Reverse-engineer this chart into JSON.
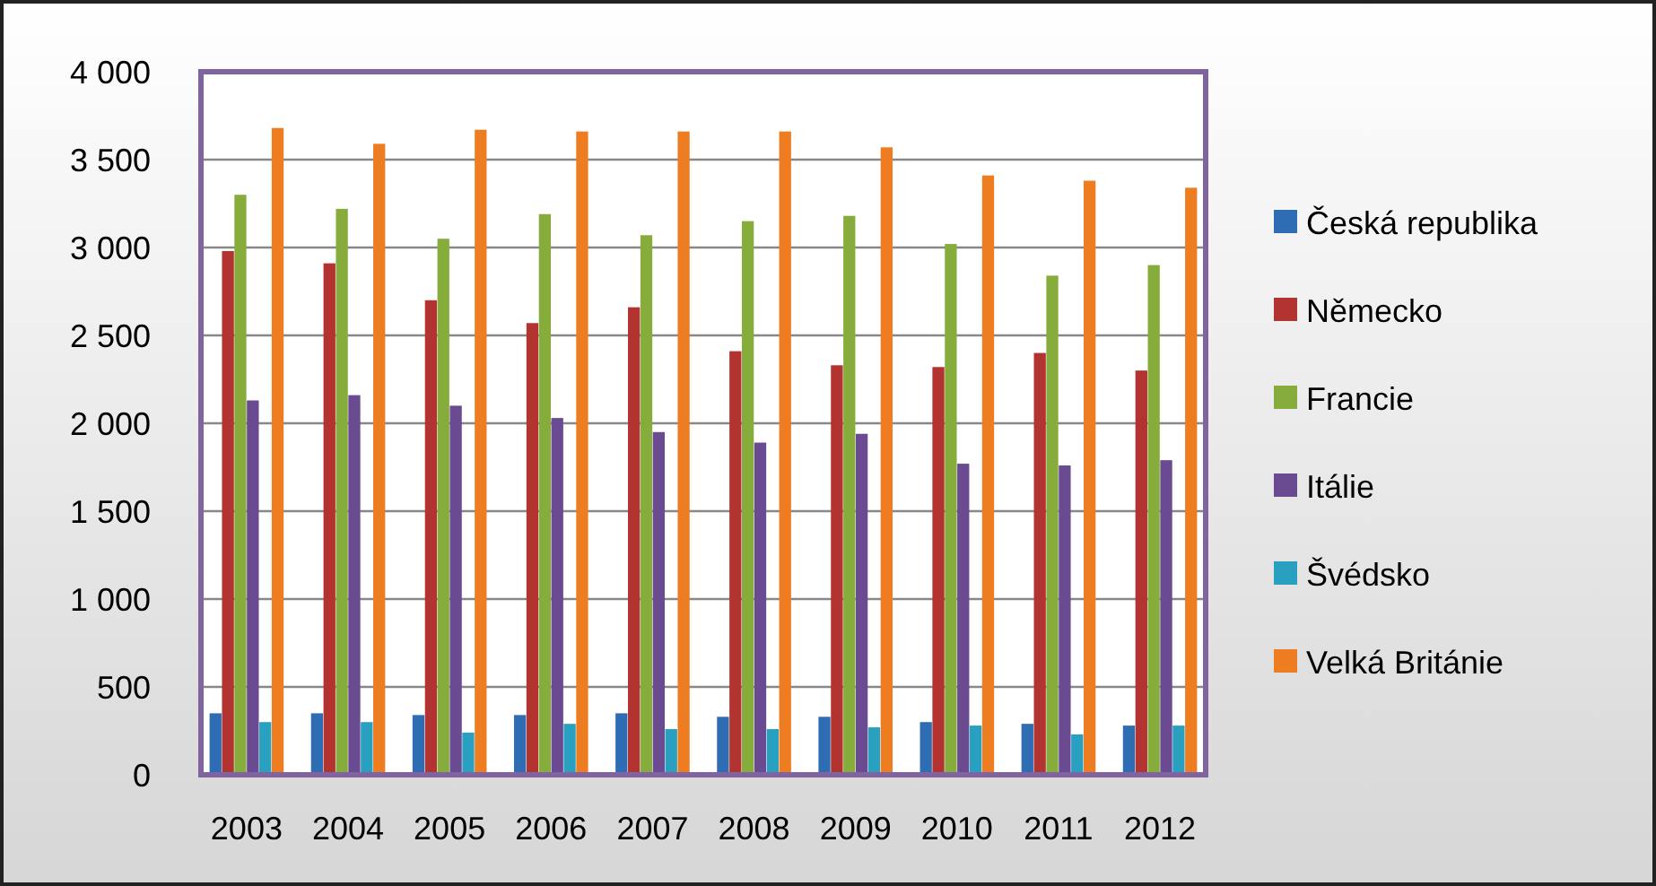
{
  "chart_data": {
    "type": "bar",
    "categories": [
      "2003",
      "2004",
      "2005",
      "2006",
      "2007",
      "2008",
      "2009",
      "2010",
      "2011",
      "2012"
    ],
    "series": [
      {
        "name": "Česká republika",
        "color": "#2e6db4",
        "values": [
          350,
          350,
          340,
          340,
          350,
          330,
          330,
          300,
          290,
          280
        ]
      },
      {
        "name": "Německo",
        "color": "#b33330",
        "values": [
          2980,
          2910,
          2700,
          2570,
          2660,
          2410,
          2330,
          2320,
          2400,
          2300
        ]
      },
      {
        "name": "Francie",
        "color": "#86ad3c",
        "values": [
          3300,
          3220,
          3050,
          3190,
          3070,
          3150,
          3180,
          3020,
          2840,
          2900
        ]
      },
      {
        "name": "Itálie",
        "color": "#6a4b92",
        "values": [
          2130,
          2160,
          2100,
          2030,
          1950,
          1890,
          1940,
          1770,
          1760,
          1790
        ]
      },
      {
        "name": "Švédsko",
        "color": "#2aa0c0",
        "values": [
          300,
          300,
          240,
          290,
          260,
          260,
          270,
          280,
          230,
          280
        ]
      },
      {
        "name": "Velká Británie",
        "color": "#ee7d22",
        "values": [
          3680,
          3590,
          3670,
          3660,
          3660,
          3660,
          3570,
          3410,
          3380,
          3340
        ]
      }
    ],
    "ylim": [
      0,
      4000
    ],
    "yticks": [
      {
        "value": 0,
        "label": "0"
      },
      {
        "value": 500,
        "label": "500"
      },
      {
        "value": 1000,
        "label": "1 000"
      },
      {
        "value": 1500,
        "label": "1 500"
      },
      {
        "value": 2000,
        "label": "2 000"
      },
      {
        "value": 2500,
        "label": "2 500"
      },
      {
        "value": 3000,
        "label": "3 000"
      },
      {
        "value": 3500,
        "label": "3 500"
      },
      {
        "value": 4000,
        "label": "4 000"
      }
    ],
    "grid": "y",
    "legend": "right"
  }
}
